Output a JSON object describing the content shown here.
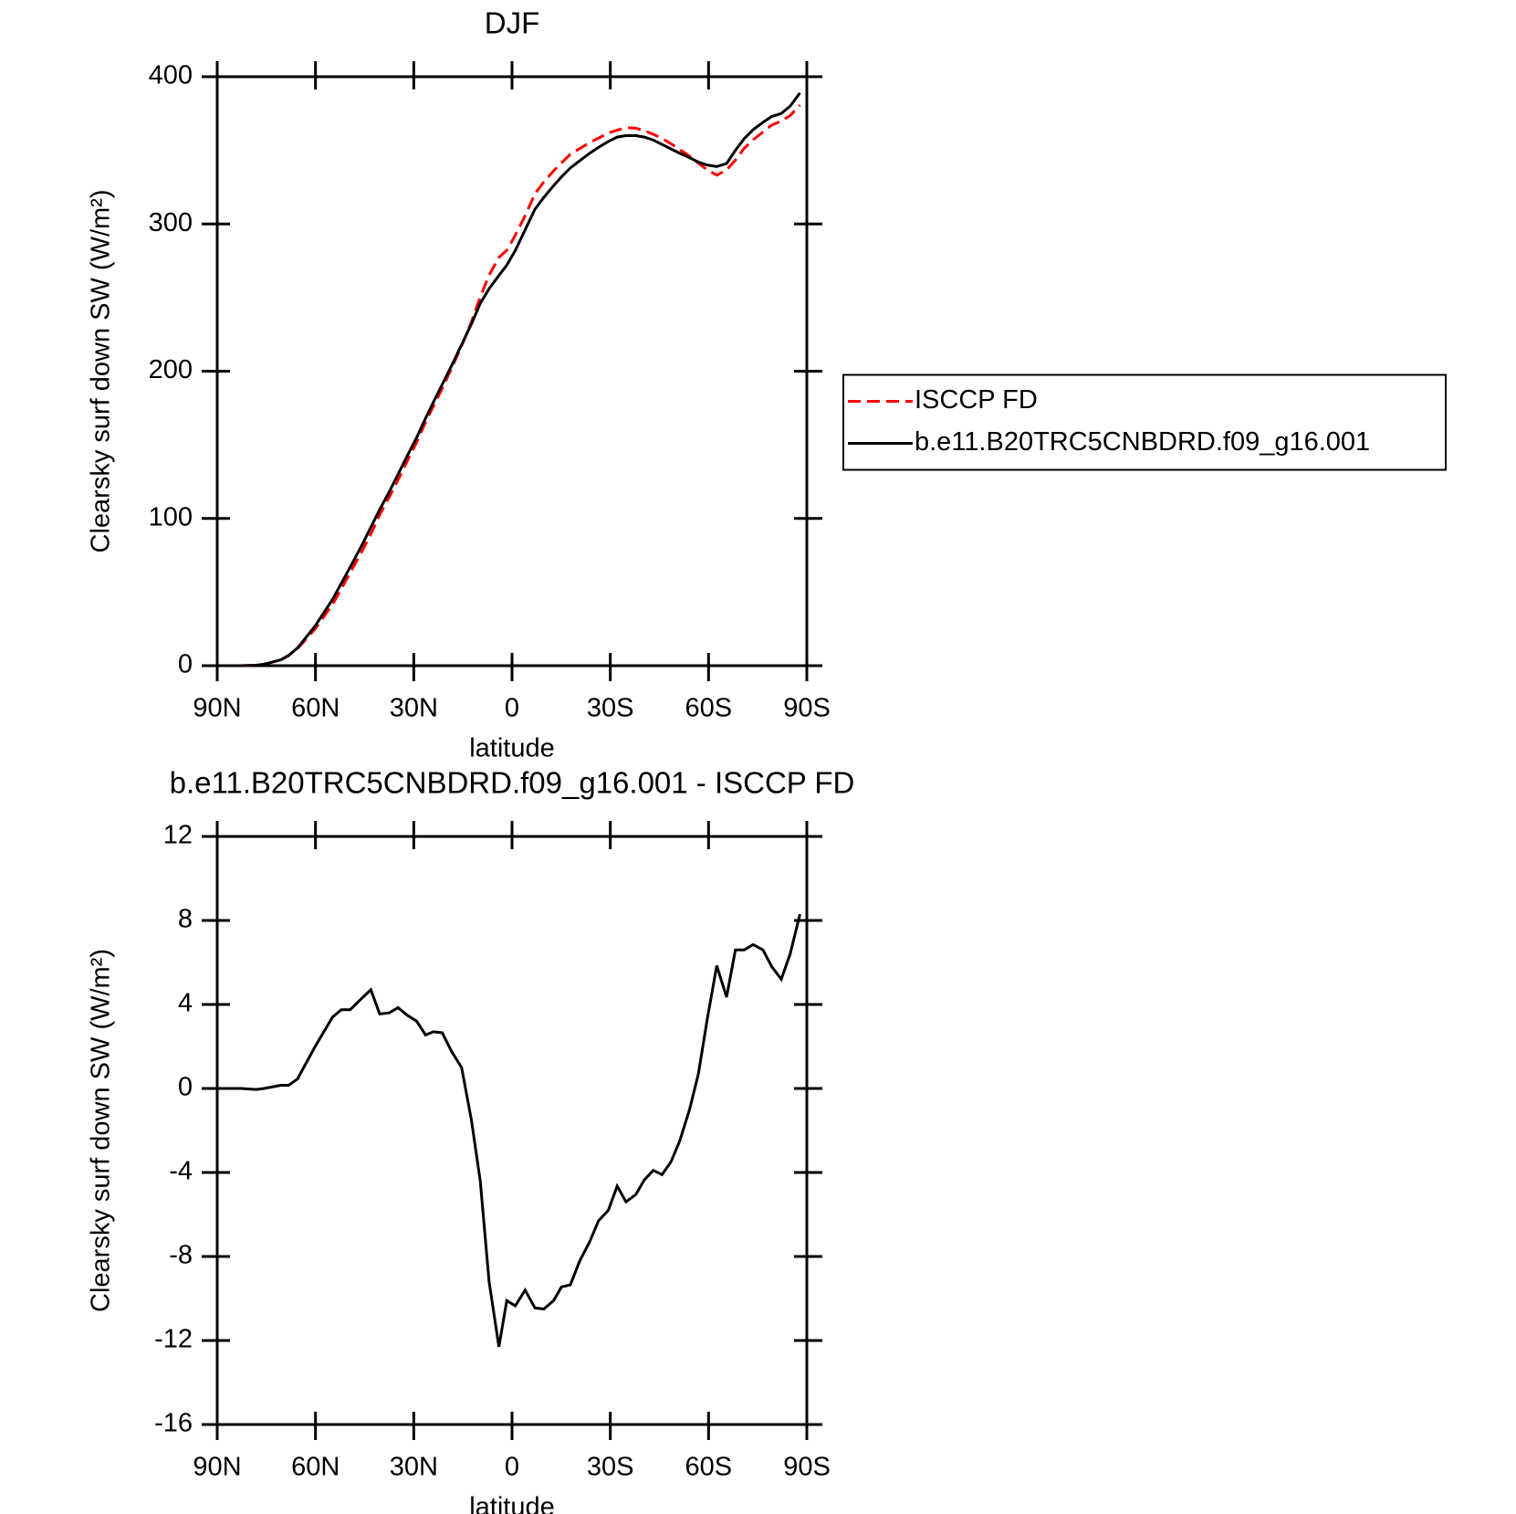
{
  "chart_data": [
    {
      "type": "line",
      "title": "DJF",
      "x_label": "latitude",
      "y_label": "Clearsky surf down SW (W/m²)",
      "x": [
        87.6,
        82.8,
        78.1,
        75.7,
        70.6,
        68.2,
        65.5,
        60.1,
        54.8,
        52.1,
        49.4,
        45.8,
        43.1,
        40.4,
        37.5,
        34.8,
        32.1,
        29.1,
        26.4,
        24.0,
        21.3,
        18.4,
        15.4,
        12.4,
        9.7,
        7.0,
        4.0,
        1.6,
        -1.0,
        -4.0,
        -7.0,
        -9.7,
        -12.7,
        -15.1,
        -17.8,
        -20.7,
        -23.7,
        -26.4,
        -29.4,
        -32.1,
        -34.8,
        -37.8,
        -40.4,
        -43.1,
        -45.8,
        -48.5,
        -51.2,
        -54.2,
        -56.9,
        -59.6,
        -62.5,
        -65.5,
        -68.2,
        -70.9,
        -73.6,
        -76.6,
        -79.3,
        -82.2,
        -84.9,
        -87.9
      ],
      "series": [
        {
          "name": "ISCCP FD",
          "color": "#ff0000",
          "line_style": "dashed",
          "values": [
            0,
            0,
            0.35,
            1,
            3.85,
            6.85,
            11.55,
            25,
            41.6,
            52.25,
            63.25,
            77.7,
            89.3,
            102.45,
            114.4,
            126.15,
            138.5,
            151.8,
            165.45,
            176.3,
            188.35,
            202.25,
            217,
            233.5,
            250.4,
            265.2,
            277.3,
            282.1,
            292.35,
            305.6,
            320.45,
            328.5,
            336.1,
            341.45,
            347.35,
            351.2,
            355.3,
            358.3,
            361.8,
            363.65,
            365.4,
            365.05,
            363.35,
            360.9,
            358.1,
            354.5,
            350.5,
            346,
            341.3,
            336.7,
            333.15,
            336.65,
            343.4,
            351.4,
            357.15,
            362.4,
            367.2,
            369.8,
            373.6,
            380.7
          ]
        },
        {
          "name": "b.e11.B20TRC5CNBDRD.f09_g16.001",
          "color": "#000000",
          "line_style": "solid",
          "values": [
            0,
            0,
            0.3,
            1,
            4,
            7,
            12,
            27,
            45,
            56,
            67,
            82,
            94,
            106,
            118,
            130,
            142,
            155,
            168,
            179,
            191,
            204,
            218,
            232,
            246,
            256,
            265,
            272,
            282,
            296,
            310,
            318,
            326,
            332,
            338,
            343,
            348,
            352,
            356,
            359,
            360,
            360,
            359,
            357,
            354,
            351,
            348,
            345,
            342,
            340,
            339,
            341,
            350,
            358,
            364,
            369,
            373,
            375,
            380,
            389
          ]
        }
      ],
      "xlim": [
        90,
        -90
      ],
      "xticks": [
        {
          "value": 90,
          "label": "90N"
        },
        {
          "value": 60,
          "label": "60N"
        },
        {
          "value": 30,
          "label": "30N"
        },
        0,
        {
          "value": -30,
          "label": "30S"
        },
        {
          "value": -60,
          "label": "60S"
        },
        {
          "value": -90,
          "label": "90S"
        }
      ],
      "ylim": [
        0,
        400
      ],
      "yticks": [
        0,
        100,
        200,
        300,
        400
      ],
      "legend": "right"
    },
    {
      "type": "line",
      "title": "b.e11.B20TRC5CNBDRD.f09_g16.001 - ISCCP FD",
      "x_label": "latitude",
      "y_label": "Clearsky surf down SW (W/m²)",
      "x": [
        87.6,
        82.8,
        78.1,
        75.7,
        70.6,
        68.2,
        65.5,
        60.1,
        54.8,
        52.1,
        49.4,
        45.8,
        43.1,
        40.4,
        37.5,
        34.8,
        32.1,
        29.1,
        26.4,
        24.0,
        21.3,
        18.4,
        15.4,
        12.4,
        9.7,
        7.0,
        4.0,
        1.6,
        -1.0,
        -4.0,
        -7.0,
        -9.7,
        -12.7,
        -15.1,
        -17.8,
        -20.7,
        -23.7,
        -26.4,
        -29.4,
        -32.1,
        -34.8,
        -37.8,
        -40.4,
        -43.1,
        -45.8,
        -48.5,
        -51.2,
        -54.2,
        -56.9,
        -59.6,
        -62.5,
        -65.5,
        -68.2,
        -70.9,
        -73.6,
        -76.6,
        -79.3,
        -82.2,
        -84.9,
        -87.9
      ],
      "color": "#000000",
      "values": [
        0,
        0,
        -0.05,
        0,
        0.15,
        0.15,
        0.45,
        2.0,
        3.4,
        3.75,
        3.75,
        4.3,
        4.7,
        3.55,
        3.6,
        3.85,
        3.5,
        3.2,
        2.55,
        2.7,
        2.65,
        1.75,
        1.0,
        -1.5,
        -4.4,
        -9.2,
        -12.3,
        -10.1,
        -10.35,
        -9.6,
        -10.45,
        -10.5,
        -10.1,
        -9.45,
        -9.35,
        -8.2,
        -7.3,
        -6.3,
        -5.8,
        -4.65,
        -5.4,
        -5.05,
        -4.35,
        -3.9,
        -4.1,
        -3.5,
        -2.5,
        -1.0,
        0.7,
        3.3,
        5.85,
        4.35,
        6.6,
        6.6,
        6.85,
        6.6,
        5.8,
        5.2,
        6.4,
        8.3
      ],
      "xlim": [
        90,
        -90
      ],
      "xticks": [
        {
          "value": 90,
          "label": "90N"
        },
        {
          "value": 60,
          "label": "60N"
        },
        {
          "value": 30,
          "label": "30N"
        },
        0,
        {
          "value": -30,
          "label": "30S"
        },
        {
          "value": -60,
          "label": "60S"
        },
        {
          "value": -90,
          "label": "90S"
        }
      ],
      "ylim": [
        -16,
        12
      ],
      "yticks": [
        -16,
        -12,
        -8,
        -4,
        0,
        4,
        8,
        12
      ]
    }
  ]
}
